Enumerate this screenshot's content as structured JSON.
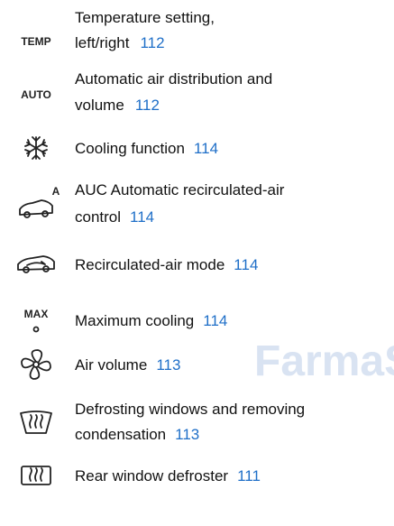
{
  "watermark": "FarmaS",
  "items": [
    {
      "icon_label": "TEMP",
      "lines": [
        "Temperature setting,",
        "left/right"
      ],
      "page": "112"
    },
    {
      "icon_label": "AUTO",
      "lines": [
        "Automatic air distribution and",
        "volume"
      ],
      "page": "112"
    },
    {
      "lines": [
        "Cooling function"
      ],
      "page": "114"
    },
    {
      "icon_label": "A",
      "lines": [
        "AUC Automatic recirculated-air",
        "control"
      ],
      "page": "114"
    },
    {
      "lines": [
        "Recirculated-air mode"
      ],
      "page": "114"
    },
    {
      "icon_label": "MAX",
      "lines": [
        "Maximum cooling"
      ],
      "page": "114"
    },
    {
      "lines": [
        "Air volume"
      ],
      "page": "113"
    },
    {
      "lines": [
        "Defrosting windows and removing",
        "condensation"
      ],
      "page": "113"
    },
    {
      "lines": [
        "Rear window defroster"
      ],
      "page": "111"
    }
  ]
}
